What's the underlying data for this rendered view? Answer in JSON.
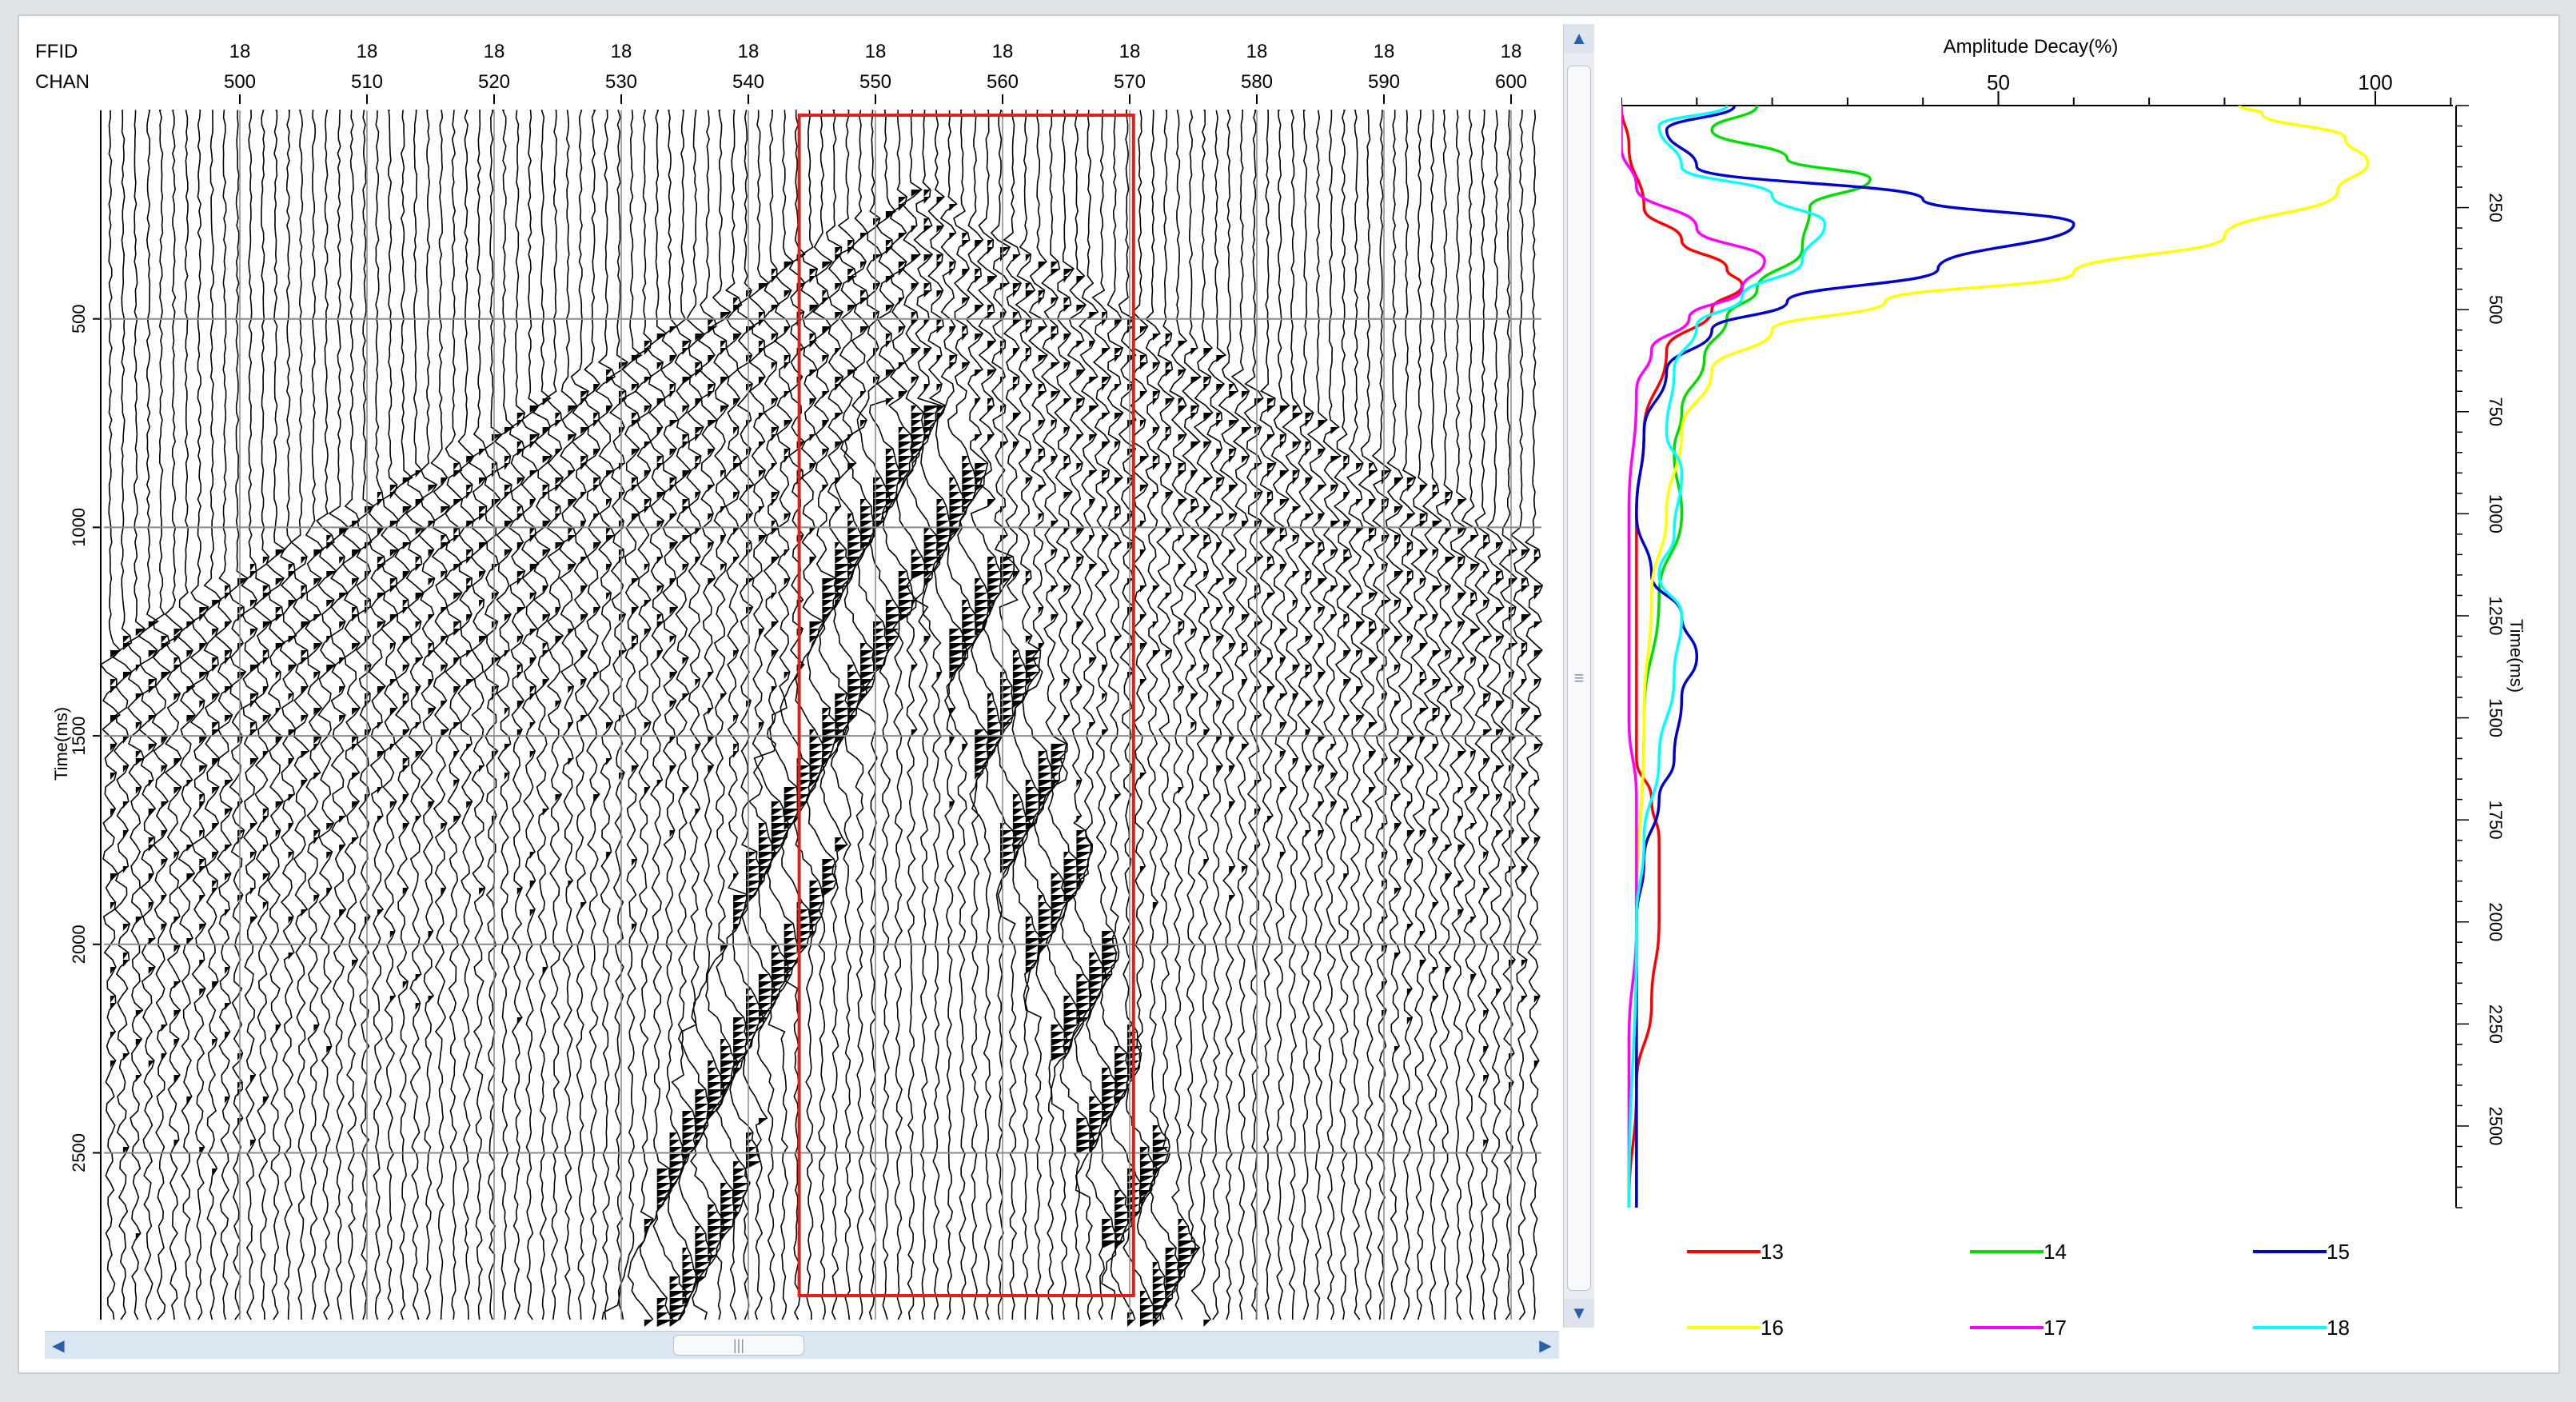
{
  "seismic": {
    "header_labels": {
      "ffid": "FFID",
      "chan": "CHAN"
    },
    "ffid_value": "18",
    "chan_ticks": [
      "500",
      "510",
      "520",
      "530",
      "540",
      "550",
      "560",
      "570",
      "580",
      "590",
      "600"
    ],
    "ylabel": "Time(ms)",
    "time_ticks": [
      "500",
      "1000",
      "1500",
      "2000",
      "2500"
    ],
    "colors": {
      "trace": "#000000",
      "grid": "#8a8a8a",
      "highlight_box": "#e0201b"
    }
  },
  "chart_data": {
    "type": "line",
    "xlabel": "Amplitude Decay(%)",
    "ylabel": "Time(ms)",
    "xlim": [
      0,
      110
    ],
    "ylim": [
      0,
      2700
    ],
    "x_ticks": [
      "50",
      "100"
    ],
    "y_ticks": [
      "250",
      "500",
      "750",
      "1000",
      "1250",
      "1500",
      "1750",
      "2000",
      "2250",
      "2500"
    ],
    "legend_placement": "bottom",
    "series": [
      {
        "name": "13",
        "color": "#ff0000",
        "points": [
          [
            0,
            0
          ],
          [
            1,
            100
          ],
          [
            3,
            250
          ],
          [
            8,
            330
          ],
          [
            14,
            400
          ],
          [
            16,
            440
          ],
          [
            12,
            500
          ],
          [
            6,
            600
          ],
          [
            3,
            800
          ],
          [
            2,
            1000
          ],
          [
            2,
            1200
          ],
          [
            2,
            1400
          ],
          [
            2,
            1600
          ],
          [
            4,
            1700
          ],
          [
            5,
            1800
          ],
          [
            5,
            2000
          ],
          [
            4,
            2200
          ],
          [
            2,
            2400
          ],
          [
            1,
            2700
          ]
        ]
      },
      {
        "name": "14",
        "color": "#00dd00",
        "points": [
          [
            18,
            0
          ],
          [
            12,
            60
          ],
          [
            22,
            130
          ],
          [
            33,
            180
          ],
          [
            25,
            250
          ],
          [
            24,
            350
          ],
          [
            18,
            450
          ],
          [
            14,
            520
          ],
          [
            11,
            620
          ],
          [
            8,
            750
          ],
          [
            7,
            850
          ],
          [
            8,
            1000
          ],
          [
            5,
            1200
          ],
          [
            3,
            1500
          ],
          [
            2,
            2000
          ],
          [
            2,
            2700
          ]
        ]
      },
      {
        "name": "15",
        "color": "#0000cc",
        "points": [
          [
            15,
            0
          ],
          [
            6,
            60
          ],
          [
            10,
            150
          ],
          [
            40,
            230
          ],
          [
            60,
            290
          ],
          [
            42,
            400
          ],
          [
            22,
            480
          ],
          [
            12,
            550
          ],
          [
            6,
            650
          ],
          [
            3,
            800
          ],
          [
            2,
            1000
          ],
          [
            4,
            1150
          ],
          [
            8,
            1250
          ],
          [
            10,
            1350
          ],
          [
            8,
            1450
          ],
          [
            7,
            1600
          ],
          [
            5,
            1700
          ],
          [
            3,
            1850
          ],
          [
            2,
            2000
          ],
          [
            2,
            2700
          ]
        ]
      },
      {
        "name": "16",
        "color": "#ffff00",
        "points": [
          [
            82,
            0
          ],
          [
            85,
            20
          ],
          [
            96,
            80
          ],
          [
            99,
            140
          ],
          [
            95,
            210
          ],
          [
            80,
            320
          ],
          [
            60,
            410
          ],
          [
            35,
            480
          ],
          [
            20,
            550
          ],
          [
            12,
            650
          ],
          [
            8,
            800
          ],
          [
            6,
            1000
          ],
          [
            4,
            1200
          ],
          [
            3,
            1500
          ],
          [
            2,
            2000
          ],
          [
            1,
            2700
          ]
        ]
      },
      {
        "name": "17",
        "color": "#ff00ff",
        "points": [
          [
            0,
            0
          ],
          [
            0,
            100
          ],
          [
            2,
            200
          ],
          [
            10,
            300
          ],
          [
            19,
            380
          ],
          [
            16,
            450
          ],
          [
            9,
            520
          ],
          [
            4,
            600
          ],
          [
            2,
            700
          ],
          [
            1,
            1000
          ],
          [
            1,
            1300
          ],
          [
            1,
            1500
          ],
          [
            2,
            1700
          ],
          [
            2,
            2000
          ],
          [
            1,
            2300
          ],
          [
            1,
            2700
          ]
        ]
      },
      {
        "name": "18",
        "color": "#00ffff",
        "points": [
          [
            14,
            0
          ],
          [
            5,
            50
          ],
          [
            8,
            150
          ],
          [
            20,
            220
          ],
          [
            27,
            290
          ],
          [
            24,
            380
          ],
          [
            16,
            470
          ],
          [
            10,
            540
          ],
          [
            7,
            650
          ],
          [
            6,
            800
          ],
          [
            8,
            900
          ],
          [
            7,
            1050
          ],
          [
            5,
            1150
          ],
          [
            8,
            1250
          ],
          [
            7,
            1400
          ],
          [
            5,
            1600
          ],
          [
            3,
            1800
          ],
          [
            2,
            2000
          ],
          [
            1,
            2700
          ]
        ]
      }
    ]
  }
}
